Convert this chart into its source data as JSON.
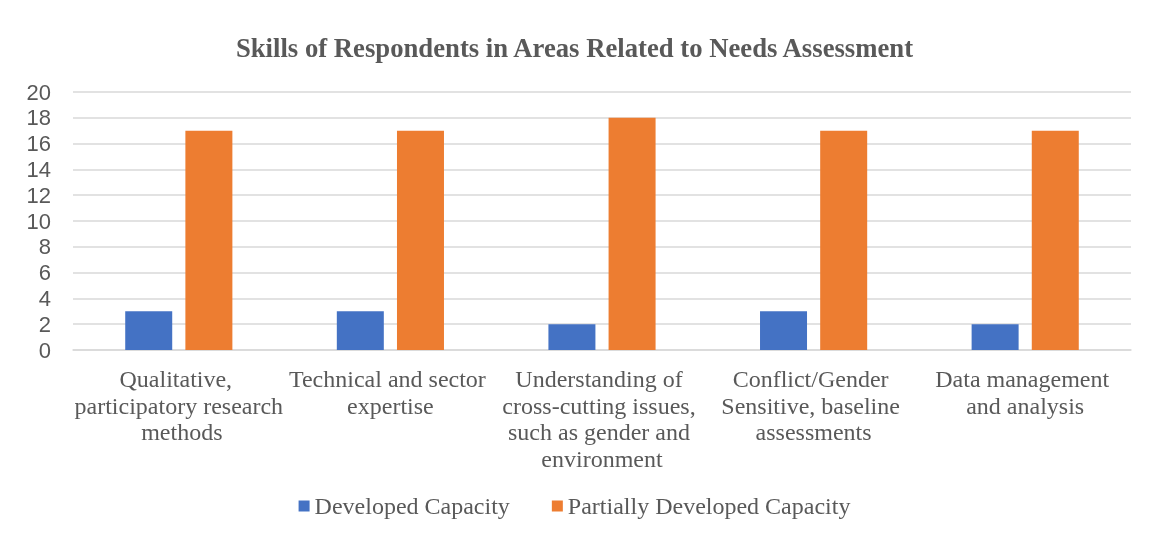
{
  "chart_data": {
    "type": "bar",
    "title": "Skills of Respondents in Areas Related to Needs Assessment",
    "categories": [
      "Qualitative, participatory research methods",
      "Technical and sector expertise",
      "Understanding of cross-cutting issues, such as gender and environment",
      "Conflict/Gender Sensitive, baseline assessments",
      "Data management and analysis"
    ],
    "series": [
      {
        "name": "Developed Capacity",
        "color": "#4472c4",
        "values": [
          3,
          3,
          2,
          3,
          2
        ]
      },
      {
        "name": "Partially Developed Capacity",
        "color": "#ed7d31",
        "values": [
          17,
          17,
          18,
          17,
          17
        ]
      }
    ],
    "ylim": [
      0,
      20
    ],
    "yticks": [
      0,
      2,
      4,
      6,
      8,
      10,
      12,
      14,
      16,
      18,
      20
    ],
    "grid": "y",
    "legend": "bottom"
  }
}
